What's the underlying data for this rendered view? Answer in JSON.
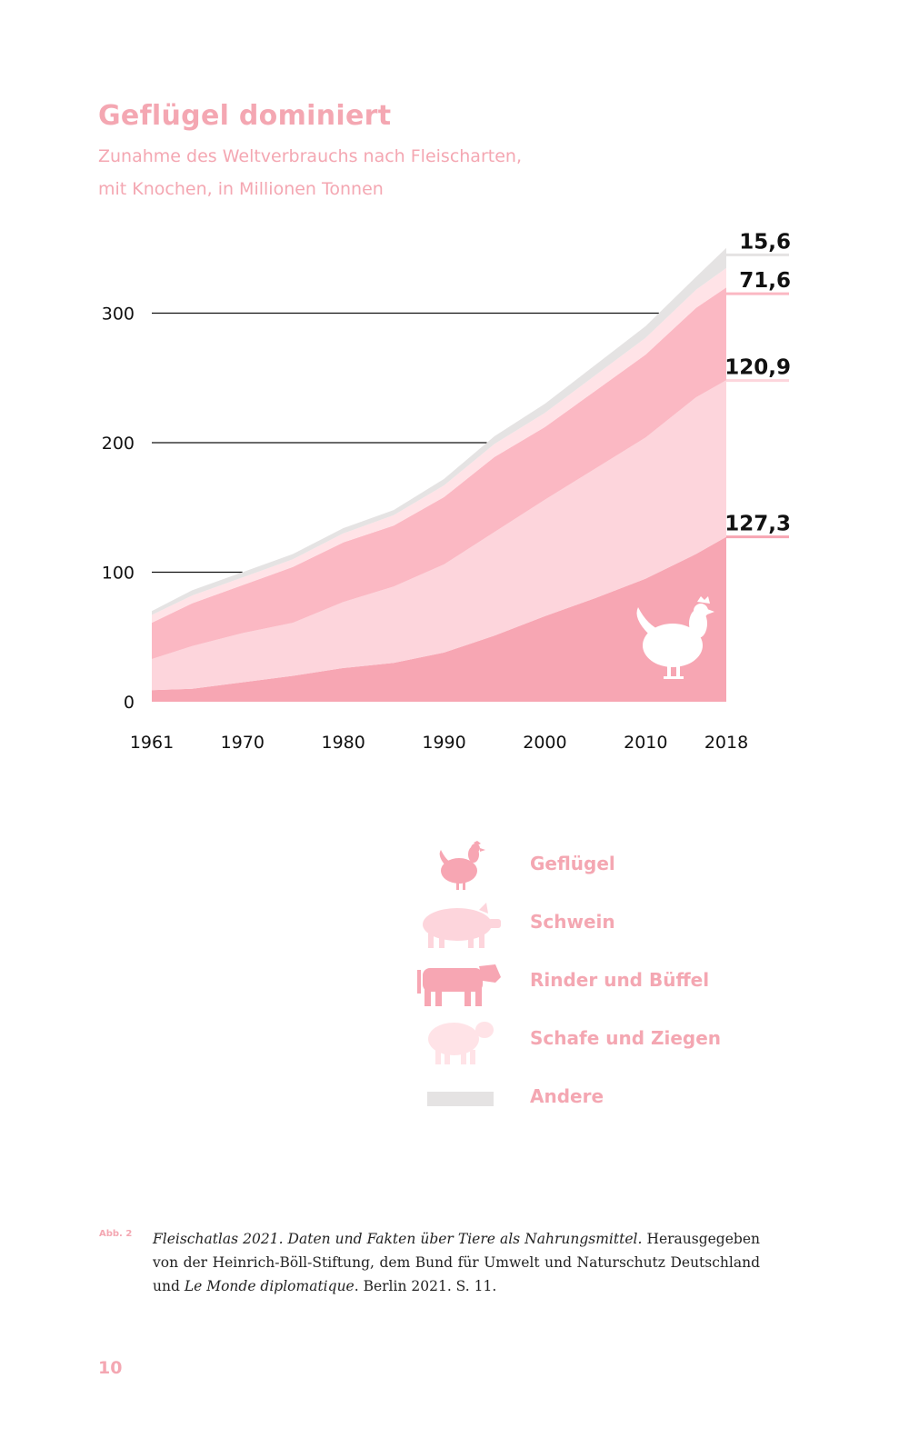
{
  "title": "Geflügel dominiert",
  "subtitle_line1": "Zunahme des Weltverbrauchs nach Fleischarten,",
  "subtitle_line2": "mit Knochen, in Millionen Tonnen",
  "chart_data": {
    "type": "area",
    "stacked": true,
    "title": "Geflügel dominiert",
    "subtitle": "Zunahme des Weltverbrauchs nach Fleischarten, mit Knochen, in Millionen Tonnen",
    "xlabel": "",
    "ylabel": "",
    "x_ticks": [
      "1961",
      "1970",
      "1980",
      "1990",
      "2000",
      "2010",
      "2018"
    ],
    "y_ticks": [
      "0",
      "100",
      "200",
      "300"
    ],
    "xlim": [
      1961,
      2018
    ],
    "ylim": [
      0,
      350
    ],
    "grid": "partial horizontal lines at 100, 200, 300",
    "x": [
      1961,
      1965,
      1970,
      1975,
      1980,
      1985,
      1990,
      1995,
      2000,
      2005,
      2010,
      2015,
      2018
    ],
    "series": [
      {
        "name": "Geflügel",
        "color": "#f7a6b3",
        "values": [
          9,
          10,
          15,
          20,
          26,
          30,
          38,
          51,
          66,
          80,
          95,
          114,
          127.3
        ]
      },
      {
        "name": "Schwein",
        "color": "#fdd5dc",
        "values": [
          24,
          33,
          38,
          41,
          51,
          59,
          68,
          80,
          90,
          100,
          109,
          121,
          120.9
        ]
      },
      {
        "name": "Rinder und Büffel",
        "color": "#fbb8c3",
        "values": [
          28,
          33,
          37,
          43,
          46,
          47,
          52,
          58,
          56,
          60,
          64,
          69,
          71.6
        ]
      },
      {
        "name": "Schafe und Ziegen",
        "color": "#ffe3e7",
        "values": [
          6,
          6,
          6,
          6,
          7,
          8,
          9,
          10,
          11,
          12,
          13,
          14,
          15
        ]
      },
      {
        "name": "Andere",
        "color": "#e5e3e3",
        "values": [
          3,
          4,
          4,
          4,
          4,
          4,
          5,
          6,
          7,
          8,
          9,
          10,
          15.6
        ]
      }
    ],
    "end_labels": [
      "127,3",
      "120,9",
      "71,6",
      "15,6"
    ]
  },
  "legend": {
    "items": [
      {
        "label": "Geflügel",
        "icon": "chicken-icon",
        "color": "#f7a6b3"
      },
      {
        "label": "Schwein",
        "icon": "pig-icon",
        "color": "#fdd5dc"
      },
      {
        "label": "Rinder und Büffel",
        "icon": "cow-icon",
        "color": "#fbb8c3"
      },
      {
        "label": "Schafe und Ziegen",
        "icon": "sheep-icon",
        "color": "#ffe3e7"
      },
      {
        "label": "Andere",
        "icon": "grey-bar",
        "color": "#e5e3e3"
      }
    ]
  },
  "source": {
    "abb": "Abb. 2",
    "italic1": "Fleischatlas 2021. Daten und Fakten über Tiere als Nahrungsmittel.",
    "text1": " Herausgegeben von der Heinrich-Böll-Stiftung, dem Bund für Umwelt und Naturschutz Deutschland und ",
    "italic2": "Le Monde diplomatique",
    "text2": ". Berlin 2021. S. 11."
  },
  "page_number": "10"
}
